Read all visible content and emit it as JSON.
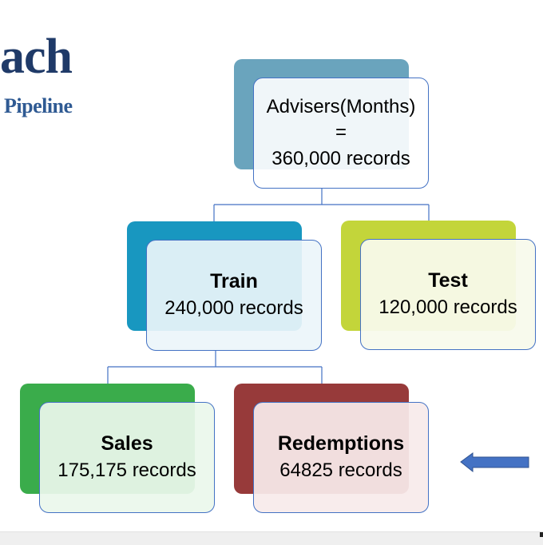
{
  "header": {
    "title": "ach",
    "subtitle": "Pipeline"
  },
  "colors": {
    "root": "#6aa4bd",
    "train": "#1897c0",
    "test": "#c3d53a",
    "sales": "#3aac4b",
    "redemptions": "#973a3a",
    "connector": "#4472c4",
    "arrow": "#4472c4",
    "title": "#1f3a68"
  },
  "nodes": {
    "root": {
      "lines": [
        "Advisers(Months)",
        "=",
        "360,000 records"
      ]
    },
    "train": {
      "heading": "Train",
      "line": "240,000 records"
    },
    "test": {
      "heading": "Test",
      "line": "120,000 records"
    },
    "sales": {
      "heading": "Sales",
      "line": "175,175 records"
    },
    "redemptions": {
      "heading": "Redemptions",
      "line": "64825 records"
    }
  },
  "annotations": {
    "pointer": "left-arrow-icon"
  }
}
